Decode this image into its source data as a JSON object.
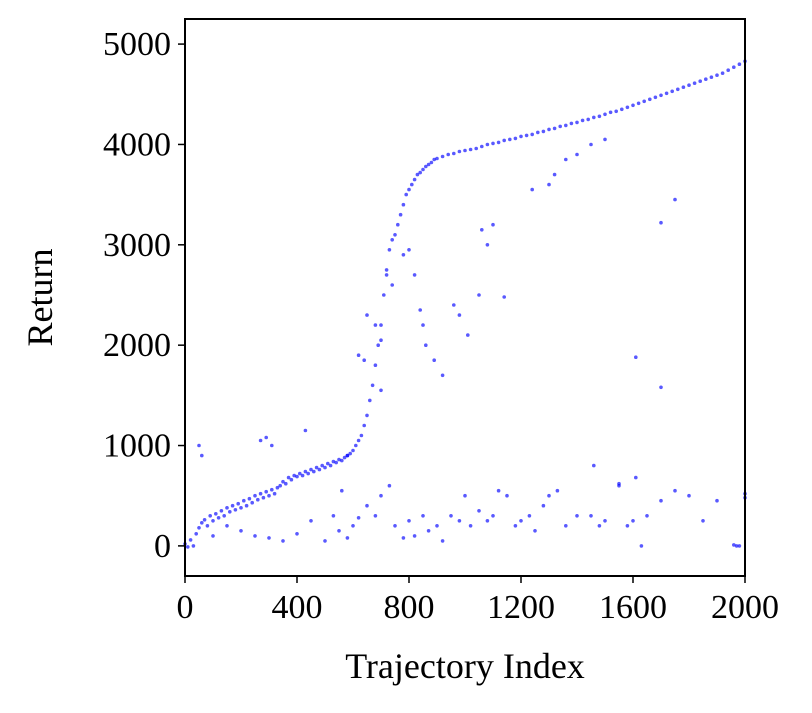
{
  "chart_data": {
    "type": "scatter",
    "title": "",
    "xlabel": "Trajectory Index",
    "ylabel": "Return",
    "xlim": [
      0,
      2000
    ],
    "ylim": [
      -300,
      5250
    ],
    "xticks": [
      "0",
      "400",
      "800",
      "1200",
      "1600",
      "2000"
    ],
    "yticks": [
      "0",
      "1000",
      "2000",
      "3000",
      "4000",
      "5000"
    ],
    "grid": false,
    "legend": "none",
    "marker_color": "#0000ff",
    "marker_opacity": 0.65,
    "series": [
      {
        "description_of_trend": "main trend points",
        "points": [
          [
            0,
            20
          ],
          [
            10,
            -10
          ],
          [
            20,
            60
          ],
          [
            30,
            0
          ],
          [
            40,
            120
          ],
          [
            50,
            180
          ],
          [
            60,
            230
          ],
          [
            70,
            260
          ],
          [
            80,
            200
          ],
          [
            90,
            300
          ],
          [
            100,
            250
          ],
          [
            110,
            320
          ],
          [
            120,
            280
          ],
          [
            130,
            350
          ],
          [
            140,
            300
          ],
          [
            150,
            380
          ],
          [
            160,
            340
          ],
          [
            170,
            400
          ],
          [
            180,
            360
          ],
          [
            190,
            420
          ],
          [
            200,
            380
          ],
          [
            210,
            450
          ],
          [
            220,
            400
          ],
          [
            230,
            470
          ],
          [
            240,
            430
          ],
          [
            250,
            500
          ],
          [
            260,
            460
          ],
          [
            270,
            520
          ],
          [
            280,
            480
          ],
          [
            290,
            540
          ],
          [
            300,
            500
          ],
          [
            310,
            560
          ],
          [
            320,
            520
          ],
          [
            330,
            580
          ],
          [
            340,
            600
          ],
          [
            350,
            640
          ],
          [
            360,
            620
          ],
          [
            370,
            680
          ],
          [
            380,
            660
          ],
          [
            390,
            700
          ],
          [
            400,
            690
          ],
          [
            410,
            720
          ],
          [
            420,
            700
          ],
          [
            430,
            740
          ],
          [
            440,
            720
          ],
          [
            450,
            760
          ],
          [
            460,
            740
          ],
          [
            470,
            780
          ],
          [
            480,
            760
          ],
          [
            490,
            800
          ],
          [
            500,
            780
          ],
          [
            510,
            820
          ],
          [
            520,
            800
          ],
          [
            530,
            840
          ],
          [
            540,
            830
          ],
          [
            550,
            860
          ],
          [
            560,
            850
          ],
          [
            570,
            880
          ],
          [
            580,
            900
          ],
          [
            590,
            920
          ],
          [
            600,
            950
          ],
          [
            610,
            1000
          ],
          [
            620,
            1050
          ],
          [
            630,
            1100
          ],
          [
            640,
            1200
          ],
          [
            650,
            1300
          ],
          [
            660,
            1450
          ],
          [
            670,
            1600
          ],
          [
            680,
            1800
          ],
          [
            690,
            2000
          ],
          [
            700,
            2200
          ],
          [
            710,
            2500
          ],
          [
            720,
            2750
          ],
          [
            730,
            2950
          ],
          [
            740,
            3050
          ],
          [
            750,
            3100
          ],
          [
            760,
            3200
          ],
          [
            770,
            3300
          ],
          [
            780,
            3400
          ],
          [
            790,
            3500
          ],
          [
            800,
            3550
          ],
          [
            810,
            3600
          ],
          [
            820,
            3650
          ],
          [
            830,
            3700
          ],
          [
            840,
            3720
          ],
          [
            850,
            3750
          ],
          [
            860,
            3780
          ],
          [
            870,
            3800
          ],
          [
            880,
            3820
          ],
          [
            890,
            3850
          ],
          [
            900,
            3860
          ],
          [
            920,
            3880
          ],
          [
            940,
            3900
          ],
          [
            960,
            3910
          ],
          [
            980,
            3930
          ],
          [
            1000,
            3940
          ],
          [
            1020,
            3950
          ],
          [
            1040,
            3960
          ],
          [
            1060,
            3980
          ],
          [
            1080,
            4000
          ],
          [
            1100,
            4010
          ],
          [
            1120,
            4020
          ],
          [
            1140,
            4040
          ],
          [
            1160,
            4050
          ],
          [
            1180,
            4060
          ],
          [
            1200,
            4080
          ],
          [
            1220,
            4090
          ],
          [
            1240,
            4100
          ],
          [
            1260,
            4120
          ],
          [
            1280,
            4130
          ],
          [
            1300,
            4150
          ],
          [
            1320,
            4160
          ],
          [
            1340,
            4180
          ],
          [
            1360,
            4190
          ],
          [
            1380,
            4210
          ],
          [
            1400,
            4220
          ],
          [
            1420,
            4240
          ],
          [
            1440,
            4250
          ],
          [
            1460,
            4270
          ],
          [
            1480,
            4280
          ],
          [
            1500,
            4300
          ],
          [
            1520,
            4320
          ],
          [
            1540,
            4330
          ],
          [
            1560,
            4350
          ],
          [
            1580,
            4370
          ],
          [
            1600,
            4390
          ],
          [
            1620,
            4410
          ],
          [
            1640,
            4430
          ],
          [
            1660,
            4450
          ],
          [
            1680,
            4470
          ],
          [
            1700,
            4490
          ],
          [
            1720,
            4510
          ],
          [
            1740,
            4530
          ],
          [
            1760,
            4550
          ],
          [
            1780,
            4570
          ],
          [
            1800,
            4590
          ],
          [
            1820,
            4610
          ],
          [
            1840,
            4630
          ],
          [
            1860,
            4650
          ],
          [
            1880,
            4670
          ],
          [
            1900,
            4690
          ],
          [
            1920,
            4710
          ],
          [
            1940,
            4740
          ],
          [
            1960,
            4770
          ],
          [
            1980,
            4800
          ],
          [
            2000,
            4830
          ],
          [
            60,
            900
          ],
          [
            50,
            1000
          ],
          [
            270,
            1050
          ],
          [
            290,
            1080
          ],
          [
            430,
            1150
          ],
          [
            310,
            1000
          ],
          [
            560,
            550
          ],
          [
            580,
            900
          ],
          [
            620,
            1900
          ],
          [
            640,
            1850
          ],
          [
            650,
            2300
          ],
          [
            680,
            2200
          ],
          [
            700,
            1550
          ],
          [
            700,
            2050
          ],
          [
            720,
            2700
          ],
          [
            740,
            2600
          ],
          [
            780,
            2900
          ],
          [
            800,
            2950
          ],
          [
            820,
            2700
          ],
          [
            840,
            2350
          ],
          [
            850,
            2200
          ],
          [
            860,
            2000
          ],
          [
            890,
            1850
          ],
          [
            920,
            1700
          ],
          [
            960,
            2400
          ],
          [
            980,
            2300
          ],
          [
            1010,
            2100
          ],
          [
            1050,
            2500
          ],
          [
            1080,
            3000
          ],
          [
            1100,
            3200
          ],
          [
            1140,
            2480
          ],
          [
            1060,
            3150
          ],
          [
            1240,
            3550
          ],
          [
            1300,
            3600
          ],
          [
            1320,
            3700
          ],
          [
            1360,
            3850
          ],
          [
            1400,
            3900
          ],
          [
            1450,
            4000
          ],
          [
            1500,
            4050
          ],
          [
            1610,
            1880
          ],
          [
            1700,
            1580
          ],
          [
            1700,
            3220
          ],
          [
            1750,
            3450
          ]
        ]
      },
      {
        "description_of_trend": "low-return outlier points",
        "points": [
          [
            100,
            100
          ],
          [
            150,
            200
          ],
          [
            200,
            150
          ],
          [
            250,
            100
          ],
          [
            300,
            80
          ],
          [
            350,
            50
          ],
          [
            400,
            120
          ],
          [
            450,
            250
          ],
          [
            500,
            50
          ],
          [
            530,
            300
          ],
          [
            550,
            150
          ],
          [
            580,
            80
          ],
          [
            600,
            200
          ],
          [
            620,
            280
          ],
          [
            650,
            400
          ],
          [
            680,
            300
          ],
          [
            700,
            500
          ],
          [
            730,
            600
          ],
          [
            750,
            200
          ],
          [
            780,
            80
          ],
          [
            800,
            250
          ],
          [
            820,
            100
          ],
          [
            850,
            300
          ],
          [
            870,
            150
          ],
          [
            900,
            200
          ],
          [
            920,
            50
          ],
          [
            950,
            300
          ],
          [
            980,
            250
          ],
          [
            1000,
            500
          ],
          [
            1020,
            200
          ],
          [
            1050,
            350
          ],
          [
            1080,
            250
          ],
          [
            1100,
            300
          ],
          [
            1120,
            550
          ],
          [
            1150,
            500
          ],
          [
            1180,
            200
          ],
          [
            1200,
            250
          ],
          [
            1230,
            300
          ],
          [
            1250,
            150
          ],
          [
            1280,
            400
          ],
          [
            1300,
            500
          ],
          [
            1330,
            550
          ],
          [
            1360,
            200
          ],
          [
            1400,
            300
          ],
          [
            1450,
            300
          ],
          [
            1480,
            200
          ],
          [
            1500,
            250
          ],
          [
            1550,
            600
          ],
          [
            1580,
            200
          ],
          [
            1600,
            250
          ],
          [
            1630,
            0
          ],
          [
            1650,
            300
          ],
          [
            1700,
            450
          ],
          [
            1750,
            550
          ],
          [
            1850,
            250
          ],
          [
            1980,
            0
          ],
          [
            2000,
            480
          ],
          [
            2000,
            520
          ],
          [
            1460,
            800
          ],
          [
            1610,
            680
          ],
          [
            1550,
            620
          ],
          [
            1800,
            500
          ],
          [
            1900,
            450
          ],
          [
            1960,
            10
          ],
          [
            1970,
            0
          ]
        ]
      }
    ]
  }
}
